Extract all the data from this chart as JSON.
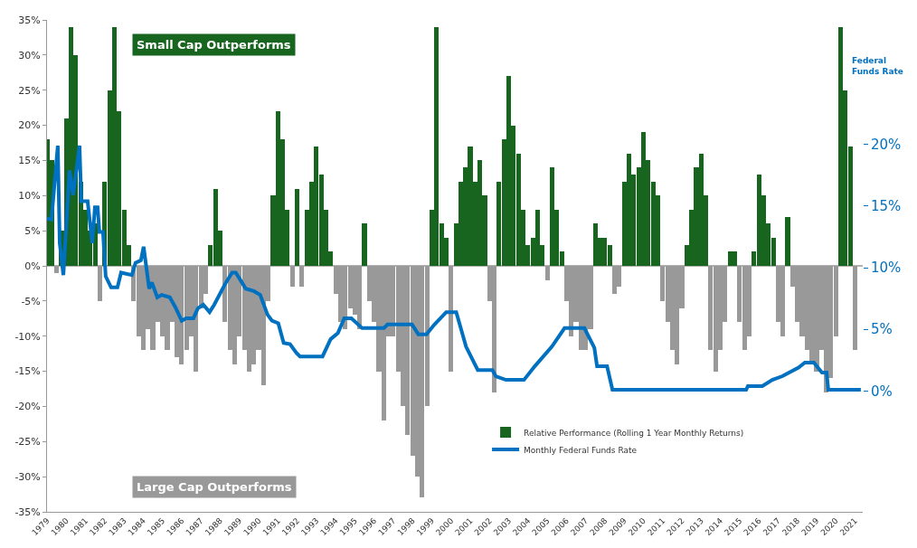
{
  "chart_data": {
    "type": "bar",
    "y2label": "Federal Funds Rate",
    "annotations": [
      "Small Cap Outperforms",
      "Large Cap Outperforms"
    ],
    "x": [
      1979,
      1979.25,
      1979.5,
      1979.75,
      1980,
      1980.25,
      1980.5,
      1980.75,
      1981,
      1981.25,
      1981.5,
      1981.75,
      1982,
      1982.25,
      1982.5,
      1982.75,
      1983,
      1983.25,
      1983.5,
      1983.75,
      1984,
      1984.25,
      1984.5,
      1984.75,
      1985,
      1985.25,
      1985.5,
      1985.75,
      1986,
      1986.25,
      1986.5,
      1986.75,
      1987,
      1987.25,
      1987.5,
      1987.75,
      1988,
      1988.25,
      1988.5,
      1988.75,
      1989,
      1989.25,
      1989.5,
      1989.75,
      1990,
      1990.25,
      1990.5,
      1990.75,
      1991,
      1991.25,
      1991.5,
      1991.75,
      1992,
      1992.25,
      1992.5,
      1992.75,
      1993,
      1993.25,
      1993.5,
      1993.75,
      1994,
      1994.25,
      1994.5,
      1994.75,
      1995,
      1995.25,
      1995.5,
      1995.75,
      1996,
      1996.25,
      1996.5,
      1996.75,
      1997,
      1997.25,
      1997.5,
      1997.75,
      1998,
      1998.25,
      1998.5,
      1998.75,
      1999,
      1999.25,
      1999.5,
      1999.75,
      2000,
      2000.25,
      2000.5,
      2000.75,
      2001,
      2001.25,
      2001.5,
      2001.75,
      2002,
      2002.25,
      2002.5,
      2002.75,
      2003,
      2003.25,
      2003.5,
      2003.75,
      2004,
      2004.25,
      2004.5,
      2004.75,
      2005,
      2005.25,
      2005.5,
      2005.75,
      2006,
      2006.25,
      2006.5,
      2006.75,
      2007,
      2007.25,
      2007.5,
      2007.75,
      2008,
      2008.25,
      2008.5,
      2008.75,
      2009,
      2009.25,
      2009.5,
      2009.75,
      2010,
      2010.25,
      2010.5,
      2010.75,
      2011,
      2011.25,
      2011.5,
      2011.75,
      2012,
      2012.25,
      2012.5,
      2012.75,
      2013,
      2013.25,
      2013.5,
      2013.75,
      2014,
      2014.25,
      2014.5,
      2014.75,
      2015,
      2015.25,
      2015.5,
      2015.75,
      2016,
      2016.25,
      2016.5,
      2016.75,
      2017,
      2017.25,
      2017.5,
      2017.75,
      2018,
      2018.25,
      2018.5,
      2018.75,
      2019,
      2019.25,
      2019.5,
      2019.75,
      2020,
      2020.25,
      2020.5,
      2020.75,
      2021
    ],
    "series": [
      {
        "name": "Relative Performance (Rolling 1 Year Monthly Returns)",
        "values": [
          18,
          15,
          -1,
          5,
          21,
          34,
          30,
          12,
          8,
          5,
          6,
          -5,
          12,
          25,
          34,
          22,
          8,
          3,
          -5,
          -10,
          -12,
          -9,
          -12,
          -8,
          -10,
          -12,
          -8,
          -13,
          -14,
          -12,
          -10,
          -15,
          -6,
          -4,
          3,
          11,
          5,
          -8,
          -12,
          -14,
          -10,
          -12,
          -15,
          -14,
          -12,
          -17,
          -5,
          10,
          22,
          18,
          8,
          -3,
          11,
          -3,
          8,
          12,
          17,
          13,
          8,
          2,
          -4,
          -8,
          -9,
          -6,
          -7,
          -9,
          6,
          -5,
          -8,
          -15,
          -22,
          -10,
          -10,
          -15,
          -20,
          -24,
          -27,
          -30,
          -33,
          -20,
          8,
          34,
          6,
          4,
          -15,
          6,
          12,
          14,
          17,
          12,
          15,
          10,
          -5,
          -18,
          12,
          18,
          27,
          20,
          16,
          8,
          3,
          4,
          8,
          3,
          -2,
          14,
          8,
          2,
          -5,
          -10,
          -8,
          -12,
          -12,
          -9,
          6,
          4,
          4,
          3,
          -4,
          -3,
          12,
          16,
          13,
          14,
          19,
          15,
          12,
          10,
          -5,
          -8,
          -12,
          -14,
          -6,
          3,
          8,
          14,
          16,
          10,
          -12,
          -15,
          -12,
          -8,
          2,
          2,
          -8,
          -12,
          -10,
          2,
          13,
          10,
          6,
          4,
          -8,
          -10,
          7,
          -3,
          -8,
          -10,
          -12,
          -14,
          -15,
          -12,
          -18,
          -16,
          -10,
          34,
          25,
          17,
          -12
        ],
        "colors": [
          "#17651f",
          "#17651f",
          "#999999",
          "#17651f",
          "#17651f",
          "#17651f",
          "#17651f",
          "#17651f",
          "#17651f",
          "#17651f",
          "#17651f",
          "#999999",
          "#17651f",
          "#17651f",
          "#17651f",
          "#17651f",
          "#17651f",
          "#17651f",
          "#999999",
          "#999999",
          "#999999",
          "#999999",
          "#999999",
          "#999999",
          "#999999",
          "#999999",
          "#999999",
          "#999999",
          "#999999",
          "#999999",
          "#999999",
          "#999999",
          "#999999",
          "#999999",
          "#17651f",
          "#17651f",
          "#17651f",
          "#999999",
          "#999999",
          "#999999",
          "#999999",
          "#999999",
          "#999999",
          "#999999",
          "#999999",
          "#999999",
          "#999999",
          "#17651f",
          "#17651f",
          "#17651f",
          "#17651f",
          "#999999",
          "#17651f",
          "#999999",
          "#17651f",
          "#17651f",
          "#17651f",
          "#17651f",
          "#17651f",
          "#17651f",
          "#999999",
          "#999999",
          "#999999",
          "#999999",
          "#999999",
          "#999999",
          "#17651f",
          "#999999",
          "#999999",
          "#999999",
          "#999999",
          "#999999",
          "#999999",
          "#999999",
          "#999999",
          "#999999",
          "#999999",
          "#999999",
          "#999999",
          "#999999",
          "#17651f",
          "#17651f",
          "#17651f",
          "#17651f",
          "#999999",
          "#17651f",
          "#17651f",
          "#17651f",
          "#17651f",
          "#17651f",
          "#17651f",
          "#17651f",
          "#999999",
          "#999999",
          "#17651f",
          "#17651f",
          "#17651f",
          "#17651f",
          "#17651f",
          "#17651f",
          "#17651f",
          "#17651f",
          "#17651f",
          "#17651f",
          "#999999",
          "#17651f",
          "#17651f",
          "#17651f",
          "#999999",
          "#999999",
          "#999999",
          "#999999",
          "#999999",
          "#999999",
          "#17651f",
          "#17651f",
          "#17651f",
          "#17651f",
          "#999999",
          "#999999",
          "#17651f",
          "#17651f",
          "#17651f",
          "#17651f",
          "#17651f",
          "#17651f",
          "#17651f",
          "#17651f",
          "#999999",
          "#999999",
          "#999999",
          "#999999",
          "#999999",
          "#17651f",
          "#17651f",
          "#17651f",
          "#17651f",
          "#17651f",
          "#999999",
          "#999999",
          "#999999",
          "#999999",
          "#17651f",
          "#17651f",
          "#999999",
          "#999999",
          "#999999",
          "#17651f",
          "#17651f",
          "#17651f",
          "#17651f",
          "#17651f",
          "#999999",
          "#999999",
          "#17651f",
          "#999999",
          "#999999",
          "#999999",
          "#999999",
          "#999999",
          "#999999",
          "#999999",
          "#999999",
          "#999999",
          "#999999",
          "#17651f",
          "#17651f",
          "#17651f",
          "#999999"
        ]
      },
      {
        "name": "Monthly Federal Funds Rate",
        "type": "line",
        "axis": "y2",
        "color": "#0070c0",
        "x": [
          1979,
          1979.23,
          1979.56,
          1979.66,
          1979.85,
          1980.17,
          1980.36,
          1980.69,
          1980.78,
          1981.11,
          1981.35,
          1981.49,
          1981.63,
          1981.72,
          1981.91,
          1982.05,
          1982.33,
          1982.66,
          1982.85,
          1983.41,
          1983.6,
          1983.88,
          1984.02,
          1984.31,
          1984.45,
          1984.73,
          1984.96,
          1985.38,
          1985.67,
          1986,
          1986.23,
          1986.61,
          1986.84,
          1987.12,
          1987.45,
          1987.69,
          1988.06,
          1988.3,
          1988.62,
          1988.81,
          1989.05,
          1989.33,
          1989.75,
          1990.08,
          1990.46,
          1990.69,
          1991.02,
          1991.3,
          1991.63,
          1991.96,
          1992.15,
          1993.32,
          1993.74,
          1994.12,
          1994.45,
          1994.82,
          1995.38,
          1996.51,
          1996.7,
          1997.97,
          1998.3,
          1998.72,
          1999.14,
          1999.75,
          2000.27,
          2000.78,
          2001.39,
          2002.15,
          2002.33,
          2002.85,
          2003.79,
          2004.35,
          2005.24,
          2005.9,
          2006.93,
          2007.45,
          2007.59,
          2008.11,
          2008.39,
          2015.34,
          2015.43,
          2016.18,
          2016.7,
          2017.22,
          2018.06,
          2018.39,
          2018.86,
          2019.28,
          2019.52,
          2019.61,
          2021.3
        ],
        "values": [
          14,
          13.9,
          19.9,
          12,
          9.4,
          17.9,
          15.9,
          19.9,
          15.4,
          15.4,
          12,
          14.9,
          14.9,
          12.9,
          12.9,
          9.3,
          8.4,
          8.4,
          9.6,
          9.4,
          10.4,
          10.6,
          11.7,
          8.3,
          8.8,
          7.6,
          7.8,
          7.6,
          6.8,
          5.7,
          5.9,
          5.9,
          6.7,
          7,
          6.4,
          7,
          8.1,
          8.8,
          9.6,
          9.6,
          9,
          8.3,
          8.1,
          7.8,
          6.2,
          5.7,
          5.5,
          3.9,
          3.8,
          3.1,
          2.8,
          2.8,
          4.2,
          4.7,
          5.9,
          5.9,
          5.1,
          5.1,
          5.4,
          5.4,
          4.6,
          4.6,
          5.4,
          6.4,
          6.4,
          3.6,
          1.7,
          1.7,
          1.2,
          0.9,
          0.9,
          2,
          3.6,
          5.1,
          5.1,
          3.5,
          2,
          2,
          0.1,
          0.1,
          0.4,
          0.4,
          0.9,
          1.2,
          1.9,
          2.3,
          2.3,
          1.5,
          1.5,
          0.1,
          0.1
        ]
      }
    ],
    "xlim": [
      1979,
      2021.4
    ],
    "xticks": [
      1979,
      1980,
      1981,
      1982,
      1983,
      1984,
      1985,
      1986,
      1987,
      1988,
      1989,
      1990,
      1991,
      1992,
      1993,
      1994,
      1995,
      1996,
      1997,
      1998,
      1999,
      2000,
      2001,
      2002,
      2003,
      2004,
      2005,
      2006,
      2007,
      2008,
      2009,
      2010,
      2011,
      2012,
      2013,
      2014,
      2015,
      2016,
      2017,
      2018,
      2019,
      2020,
      2021
    ],
    "ylim": [
      -35,
      35
    ],
    "yticks": [
      {
        "value": -35,
        "label": "-35%"
      },
      {
        "value": -30,
        "label": "-30%"
      },
      {
        "value": -25,
        "label": "-25%"
      },
      {
        "value": -20,
        "label": "-20%"
      },
      {
        "value": -15,
        "label": "-15%"
      },
      {
        "value": -10,
        "label": "-10%"
      },
      {
        "value": -5,
        "label": "-5%"
      },
      {
        "value": 0,
        "label": "0%"
      },
      {
        "value": 5,
        "label": "5%"
      },
      {
        "value": 10,
        "label": "10%"
      },
      {
        "value": 15,
        "label": "15%"
      },
      {
        "value": 20,
        "label": "20%"
      },
      {
        "value": 25,
        "label": "25%"
      },
      {
        "value": 30,
        "label": "30%"
      },
      {
        "value": 35,
        "label": "35%"
      }
    ],
    "y2lim": [
      -9.8,
      30.1
    ],
    "y2ticks": [
      {
        "value": 0,
        "label": "0%"
      },
      {
        "value": 5,
        "label": "5%"
      },
      {
        "value": 10,
        "label": "10%"
      },
      {
        "value": 15,
        "label": "15%"
      },
      {
        "value": 20,
        "label": "20%"
      }
    ],
    "ref_lines": [
      {
        "axis": "y",
        "value": 0,
        "color": "#999999"
      }
    ],
    "legend": "bottom right"
  }
}
